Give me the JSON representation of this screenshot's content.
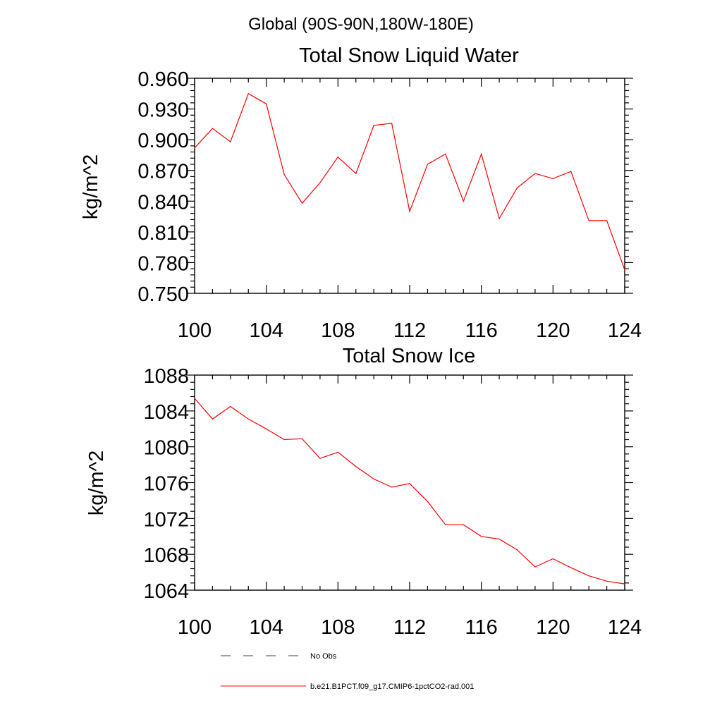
{
  "page_title": "Global (90S-90N,180W-180E)",
  "chart_data": [
    {
      "type": "line",
      "title": "Total Snow Liquid Water",
      "xlabel": "",
      "ylabel": "kg/m^2",
      "xlim": [
        100,
        124
      ],
      "ylim": [
        0.75,
        0.96
      ],
      "xticks": [
        100,
        104,
        108,
        112,
        116,
        120,
        124
      ],
      "yticks": [
        0.75,
        0.78,
        0.81,
        0.84,
        0.87,
        0.9,
        0.93,
        0.96
      ],
      "xtick_labels": [
        "100",
        "104",
        "108",
        "112",
        "116",
        "120",
        "124"
      ],
      "ytick_labels": [
        "0.750",
        "0.780",
        "0.810",
        "0.840",
        "0.870",
        "0.900",
        "0.930",
        "0.960"
      ],
      "x": [
        100,
        101,
        102,
        103,
        104,
        105,
        106,
        107,
        108,
        109,
        110,
        111,
        112,
        113,
        114,
        115,
        116,
        117,
        118,
        119,
        120,
        121,
        122,
        123,
        124
      ],
      "series": [
        {
          "name": "b.e21.B1PCT.f09_g17.CMIP6-1pctCO2-rad.001",
          "color": "#ff0000",
          "values": [
            0.892,
            0.911,
            0.898,
            0.945,
            0.935,
            0.866,
            0.838,
            0.858,
            0.883,
            0.867,
            0.914,
            0.916,
            0.83,
            0.876,
            0.886,
            0.84,
            0.886,
            0.823,
            0.853,
            0.867,
            0.862,
            0.869,
            0.821,
            0.821,
            0.773
          ]
        }
      ],
      "grid": false
    },
    {
      "type": "line",
      "title": "Total Snow Ice",
      "xlabel": "",
      "ylabel": "kg/m^2",
      "xlim": [
        100,
        124
      ],
      "ylim": [
        1064,
        1088
      ],
      "xticks": [
        100,
        104,
        108,
        112,
        116,
        120,
        124
      ],
      "yticks": [
        1064,
        1068,
        1072,
        1076,
        1080,
        1084,
        1088
      ],
      "xtick_labels": [
        "100",
        "104",
        "108",
        "112",
        "116",
        "120",
        "124"
      ],
      "ytick_labels": [
        "1064",
        "1068",
        "1072",
        "1076",
        "1080",
        "1084",
        "1088"
      ],
      "x": [
        100,
        101,
        102,
        103,
        104,
        105,
        106,
        107,
        108,
        109,
        110,
        111,
        112,
        113,
        114,
        115,
        116,
        117,
        118,
        119,
        120,
        121,
        122,
        123,
        124
      ],
      "series": [
        {
          "name": "b.e21.B1PCT.f09_g17.CMIP6-1pctCO2-rad.001",
          "color": "#ff0000",
          "values": [
            1085.4,
            1083.1,
            1084.5,
            1083.1,
            1082.0,
            1080.8,
            1080.9,
            1078.7,
            1079.4,
            1077.8,
            1076.4,
            1075.5,
            1075.9,
            1073.9,
            1071.3,
            1071.3,
            1070.0,
            1069.7,
            1068.5,
            1066.6,
            1067.5,
            1066.5,
            1065.6,
            1065.0,
            1064.7
          ]
        }
      ],
      "grid": false
    }
  ],
  "legend": {
    "items": [
      {
        "label": "No Obs",
        "style": "dashed",
        "color": "#3a3a7a"
      },
      {
        "label": "b.e21.B1PCT.f09_g17.CMIP6-1pctCO2-rad.001",
        "style": "solid",
        "color": "#ff0000"
      }
    ]
  }
}
